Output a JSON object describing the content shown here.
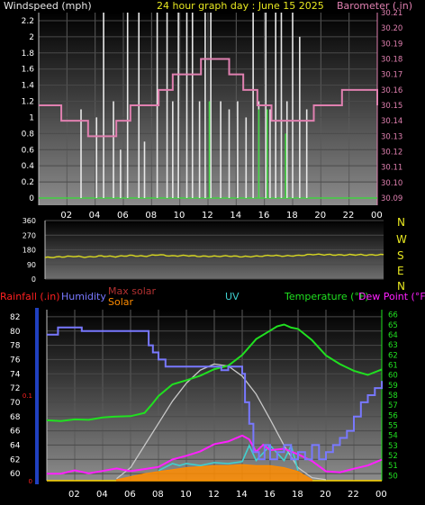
{
  "header": {
    "left_label": "Windspeed (mph)",
    "title": "24 hour graph day : June 15 2025",
    "right_label": "Barometer (.in)"
  },
  "bottom_header": {
    "rainfall": "Rainfall (.in)",
    "humidity": "Humidity",
    "max_solar": "Max solar",
    "solar": "Solar",
    "uv": "UV",
    "temperature": "Temperature (°F)",
    "dew_point": "Dew Point (°F)"
  },
  "x_ticks": [
    "02",
    "04",
    "06",
    "08",
    "10",
    "12",
    "14",
    "16",
    "18",
    "20",
    "22",
    "00"
  ],
  "compass": [
    "N",
    "W",
    "S",
    "E",
    "N"
  ],
  "colors": {
    "windspeed": "#e8e8e8",
    "gust": "#40d040",
    "barometer": "#e080b0",
    "direction": "#d8d820",
    "humidity": "#7878ff",
    "temperature": "#20e020",
    "dew_point": "#ff20ff",
    "uv": "#40d0d0",
    "solar": "#ff8c00",
    "max_solar": "#c8c8c8",
    "rain_axis": "#ff2020"
  },
  "chart_data": [
    {
      "type": "line",
      "name": "windspeed-barometer",
      "x_unit": "hour",
      "xlim": [
        0,
        24
      ],
      "left_axis": {
        "label": "Windspeed (mph)",
        "ticks": [
          0,
          0.2,
          0.4,
          0.6,
          0.8,
          1,
          1.2,
          1.4,
          1.6,
          1.8,
          2,
          2.2
        ],
        "ylim": [
          0,
          2.3
        ]
      },
      "right_axis": {
        "label": "Barometer (.in)",
        "ticks": [
          30.09,
          30.1,
          30.11,
          30.12,
          30.13,
          30.14,
          30.15,
          30.16,
          30.17,
          30.18,
          30.19,
          30.2,
          30.21
        ],
        "ylim": [
          30.09,
          30.21
        ]
      },
      "series": [
        {
          "name": "Windspeed",
          "axis": "left",
          "style": "spikes",
          "x": [
            3.0,
            4.1,
            4.6,
            5.3,
            5.8,
            6.3,
            7.1,
            7.5,
            8.4,
            9.1,
            9.5,
            9.9,
            10.5,
            10.9,
            11.4,
            11.8,
            12.2,
            12.9,
            13.5,
            14.1,
            14.7,
            15.2,
            15.6,
            16.1,
            16.4,
            16.8,
            17.2,
            17.6,
            18.0,
            18.5,
            19.0
          ],
          "y": [
            1.1,
            1.0,
            2.3,
            1.2,
            0.6,
            2.3,
            2.3,
            0.7,
            2.3,
            2.3,
            1.2,
            2.3,
            2.3,
            2.3,
            1.2,
            2.3,
            2.3,
            1.2,
            1.1,
            1.2,
            1.0,
            2.3,
            1.2,
            2.3,
            1.1,
            2.3,
            2.3,
            1.2,
            2.3,
            2.0,
            1.1
          ]
        },
        {
          "name": "Gust",
          "axis": "left",
          "style": "spikes",
          "x": [
            12.1,
            15.6,
            16.2,
            17.5
          ],
          "y": [
            1.2,
            1.1,
            1.1,
            0.8
          ]
        },
        {
          "name": "Barometer",
          "axis": "right",
          "style": "steps",
          "x": [
            0,
            1,
            1.6,
            2.5,
            3.5,
            4.5,
            5.5,
            6.5,
            7.5,
            8.5,
            9.5,
            10.5,
            11.5,
            12.5,
            13.5,
            14.5,
            15.5,
            16.5,
            17.5,
            18.5,
            19.5,
            20.5,
            21.5,
            22.5,
            23.5,
            24
          ],
          "y": [
            30.15,
            30.15,
            30.14,
            30.14,
            30.13,
            30.13,
            30.14,
            30.15,
            30.15,
            30.16,
            30.17,
            30.17,
            30.18,
            30.18,
            30.17,
            30.16,
            30.15,
            30.14,
            30.14,
            30.14,
            30.15,
            30.15,
            30.16,
            30.16,
            30.16,
            30.15
          ]
        }
      ]
    },
    {
      "type": "line",
      "name": "wind-direction",
      "x_unit": "hour",
      "xlim": [
        0,
        24
      ],
      "y_axis": {
        "ticks": [
          0,
          90,
          180,
          270,
          360
        ],
        "ylim": [
          0,
          360
        ]
      },
      "series": [
        {
          "name": "Wind direction",
          "x": [
            0,
            1,
            2,
            3,
            4,
            5,
            6,
            7,
            8,
            9,
            10,
            11,
            12,
            13,
            14,
            15,
            16,
            17,
            18,
            19,
            20,
            21,
            22,
            23,
            24
          ],
          "y": [
            132,
            136,
            140,
            135,
            142,
            138,
            145,
            140,
            150,
            142,
            145,
            140,
            140,
            142,
            138,
            140,
            145,
            142,
            145,
            152,
            150,
            148,
            150,
            148,
            150
          ]
        }
      ]
    },
    {
      "type": "line",
      "name": "temperature-humidity-solar",
      "x_unit": "hour",
      "xlim": [
        0,
        24
      ],
      "humidity_axis": {
        "label": "Humidity",
        "ticks": [
          60,
          62,
          64,
          66,
          68,
          70,
          72,
          74,
          76,
          78,
          80,
          82
        ],
        "ylim": [
          59,
          83
        ]
      },
      "temperature_axis": {
        "label": "Temperature (°F)",
        "ticks": [
          50,
          51,
          52,
          53,
          54,
          55,
          56,
          57,
          58,
          59,
          60,
          61,
          62,
          63,
          64,
          65,
          66
        ],
        "ylim": [
          49.5,
          66.5
        ]
      },
      "rain_axis": {
        "label": "Rainfall (.in)",
        "ticks": [
          0,
          0.1
        ],
        "ylim": [
          0,
          0.2
        ]
      },
      "series": [
        {
          "name": "Humidity",
          "axis": "humidity",
          "x": [
            0,
            0.8,
            1.5,
            2.5,
            3.5,
            4.5,
            5.5,
            6.5,
            7.3,
            7.6,
            8.0,
            8.5,
            9.5,
            10.5,
            11.5,
            12.0,
            12.5,
            13.0,
            13.5,
            14.0,
            14.2,
            14.5,
            14.8,
            15.2,
            15.6,
            16.0,
            16.5,
            17.0,
            17.5,
            18.0,
            18.5,
            19.0,
            19.5,
            20.0,
            20.5,
            21.0,
            21.5,
            22.0,
            22.5,
            23.0,
            23.5,
            24.0
          ],
          "y": [
            79.5,
            80.5,
            80.5,
            80,
            80,
            80,
            80,
            80,
            78,
            77,
            76,
            75,
            75,
            75,
            75,
            75,
            74.5,
            75,
            75,
            74,
            70,
            67,
            63,
            62,
            64,
            62,
            63,
            64,
            62,
            63,
            62,
            64,
            62,
            63,
            64,
            65,
            66,
            68,
            70,
            71,
            72,
            73
          ]
        },
        {
          "name": "Temperature (°F)",
          "axis": "temperature",
          "x": [
            0,
            1,
            2,
            3,
            4,
            5,
            6,
            7,
            7.5,
            8,
            9,
            10,
            11,
            12,
            13,
            14,
            15,
            16,
            16.5,
            17,
            17.5,
            18,
            19,
            20,
            21,
            22,
            23,
            24
          ],
          "y": [
            55.5,
            55.5,
            55.5,
            55.6,
            55.8,
            55.8,
            56.0,
            56.2,
            57,
            58,
            59,
            59.5,
            60,
            60.5,
            61,
            62,
            63.5,
            64.5,
            64.8,
            65.0,
            64.8,
            64.5,
            63.5,
            62.0,
            61.0,
            60.5,
            60.0,
            60.5
          ]
        },
        {
          "name": "Dew Point (°F)",
          "axis": "temperature",
          "x": [
            0,
            1,
            2,
            3,
            4,
            5,
            5.5,
            6,
            7,
            8,
            9,
            10,
            11,
            12,
            13,
            14,
            14.5,
            15,
            15.5,
            16,
            17,
            18,
            19,
            20,
            21,
            22,
            23,
            24
          ],
          "y": [
            50.2,
            50.3,
            50.4,
            50.3,
            50.5,
            50.6,
            50.7,
            50.4,
            50.6,
            51.0,
            51.5,
            52.0,
            52.5,
            53.0,
            53.5,
            54.0,
            53.5,
            52.5,
            53,
            52.5,
            52.8,
            52.0,
            51.5,
            50.5,
            50.2,
            50.8,
            51.0,
            51.5
          ]
        },
        {
          "name": "UV",
          "axis": "temperature",
          "x": [
            8,
            9,
            9.5,
            10,
            11,
            12,
            13,
            14,
            14.5,
            15,
            16,
            17,
            17.5,
            18
          ],
          "y": [
            50.5,
            51.2,
            51.0,
            51.2,
            51.0,
            51.3,
            51.2,
            51.4,
            53.0,
            51.5,
            53.0,
            51.5,
            53.0,
            50.5
          ]
        },
        {
          "name": "Max solar",
          "axis": "temperature",
          "x": [
            5,
            6,
            7,
            8,
            9,
            10,
            11,
            12,
            13,
            14,
            15,
            16,
            17,
            18,
            19,
            20
          ],
          "y": [
            49.7,
            50.8,
            53.0,
            55.2,
            57.4,
            59.2,
            60.5,
            61.1,
            60.9,
            59.9,
            58.1,
            55.6,
            53.0,
            50.8,
            49.8,
            49.6
          ]
        },
        {
          "name": "Solar",
          "axis": "temperature",
          "style": "area",
          "x": [
            5,
            7,
            8,
            9,
            10,
            11,
            12,
            13,
            14,
            15,
            16,
            17,
            18,
            19
          ],
          "y": [
            49.6,
            50.2,
            50.4,
            50.6,
            50.8,
            50.9,
            51.0,
            51.0,
            51.1,
            51.0,
            51.0,
            50.8,
            50.4,
            49.6
          ]
        }
      ]
    }
  ]
}
